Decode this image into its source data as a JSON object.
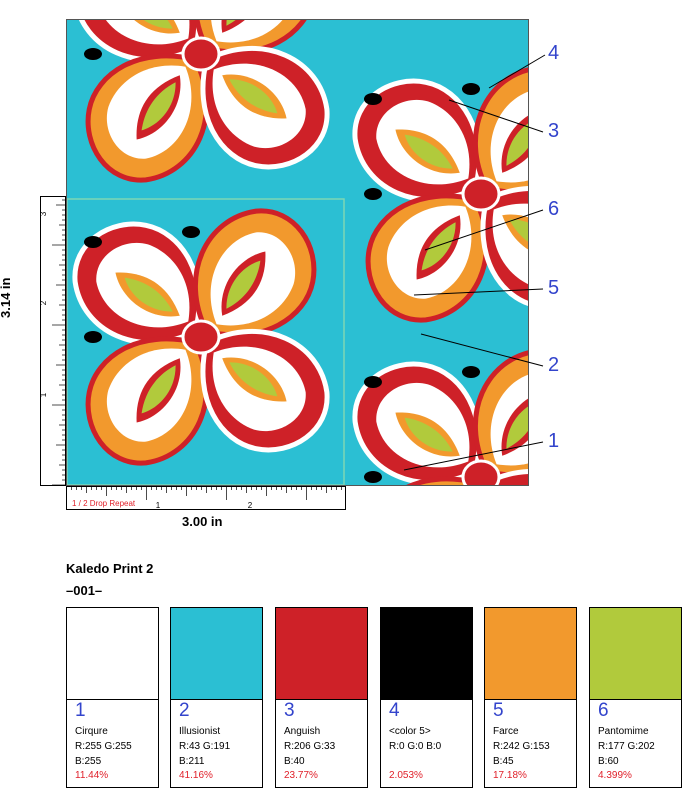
{
  "design": {
    "title": "Kaledo Print 2",
    "code": "–001–",
    "height_label": "3.14 in",
    "width_label": "3.00 in",
    "repeat_label": "1 / 2  Drop Repeat",
    "vertical_ticks": [
      "1",
      "2",
      "3"
    ],
    "horizontal_ticks": [
      "1",
      "2"
    ]
  },
  "callouts": [
    "4",
    "3",
    "6",
    "5",
    "2",
    "1"
  ],
  "swatches": [
    {
      "num": "1",
      "name": "Cirqure",
      "rg": "R:255  G:255",
      "b": "B:255",
      "pct": "11.44%",
      "hex": "#ffffff"
    },
    {
      "num": "2",
      "name": "Illusionist",
      "rg": "R:43  G:191",
      "b": "B:211",
      "pct": "41.16%",
      "hex": "#2bbfd3"
    },
    {
      "num": "3",
      "name": "Anguish",
      "rg": "R:206  G:33",
      "b": "B:40",
      "pct": "23.77%",
      "hex": "#ce2128"
    },
    {
      "num": "4",
      "name": "<color 5>",
      "rg": "R:0  G:0  B:0",
      "b": "",
      "pct": "2.053%",
      "hex": "#000000"
    },
    {
      "num": "5",
      "name": "Farce",
      "rg": "R:242  G:153",
      "b": "B:45",
      "pct": "17.18%",
      "hex": "#f2992d"
    },
    {
      "num": "6",
      "name": "Pantomime",
      "rg": "R:177  G:202",
      "b": "B:60",
      "pct": "4.399%",
      "hex": "#b1ca3c"
    }
  ]
}
